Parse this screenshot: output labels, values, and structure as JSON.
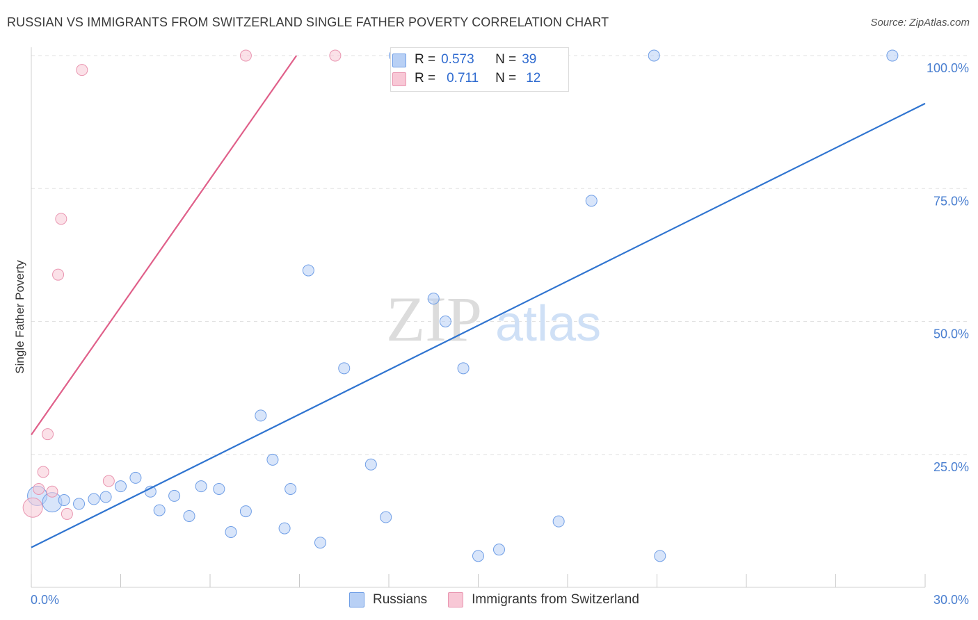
{
  "header": {
    "title": "RUSSIAN VS IMMIGRANTS FROM SWITZERLAND SINGLE FATHER POVERTY CORRELATION CHART",
    "source": "Source: ZipAtlas.com"
  },
  "watermark": {
    "zip": "ZIP",
    "atlas": "atlas"
  },
  "legend_top": {
    "rows": [
      {
        "r_label": "R =",
        "r_value": "0.573",
        "n_label": "N =",
        "n_value": "39",
        "color": "#b8d0f5",
        "border": "#6f9ee6"
      },
      {
        "r_label": "R =",
        "r_value": "0.711",
        "n_label": "N =",
        "n_value": "12",
        "color": "#f8c8d6",
        "border": "#e995b0"
      }
    ]
  },
  "legend_bottom": {
    "items": [
      {
        "label": "Russians",
        "color": "#b8d0f5",
        "border": "#6f9ee6"
      },
      {
        "label": "Immigrants from Switzerland",
        "color": "#f8c8d6",
        "border": "#e995b0"
      }
    ]
  },
  "chart_data": {
    "type": "scatter",
    "title": "RUSSIAN VS IMMIGRANTS FROM SWITZERLAND SINGLE FATHER POVERTY CORRELATION CHART",
    "xlabel": "",
    "ylabel": "Single Father Poverty",
    "xlim": [
      0,
      30
    ],
    "ylim": [
      0,
      100
    ],
    "x_tick_labels": [
      "0.0%",
      "30.0%"
    ],
    "y_tick_labels": [
      "100.0%",
      "75.0%",
      "50.0%",
      "25.0%"
    ],
    "y_tick_values": [
      100,
      75,
      50,
      25
    ],
    "grid": true,
    "legend_position": "top-center",
    "series": [
      {
        "name": "Russians",
        "color": "#6f9ee6",
        "fill": "#b8d0f5",
        "line_color": "#2f74d0",
        "trend": {
          "x": [
            0,
            30
          ],
          "y": [
            7.5,
            91
          ]
        },
        "points": [
          {
            "x": 0.2,
            "y": 17.2,
            "big": true
          },
          {
            "x": 0.7,
            "y": 16.0,
            "big": true
          },
          {
            "x": 1.1,
            "y": 16.4
          },
          {
            "x": 1.6,
            "y": 15.7
          },
          {
            "x": 2.1,
            "y": 16.6
          },
          {
            "x": 2.5,
            "y": 17.0
          },
          {
            "x": 3.0,
            "y": 19.0
          },
          {
            "x": 3.5,
            "y": 20.6
          },
          {
            "x": 4.0,
            "y": 18.0
          },
          {
            "x": 4.3,
            "y": 14.5
          },
          {
            "x": 4.8,
            "y": 17.2
          },
          {
            "x": 5.3,
            "y": 13.4
          },
          {
            "x": 5.7,
            "y": 19.0
          },
          {
            "x": 6.3,
            "y": 18.5
          },
          {
            "x": 6.7,
            "y": 10.4
          },
          {
            "x": 7.2,
            "y": 14.3
          },
          {
            "x": 7.7,
            "y": 32.3
          },
          {
            "x": 8.1,
            "y": 24.0
          },
          {
            "x": 8.5,
            "y": 11.1
          },
          {
            "x": 8.7,
            "y": 18.5
          },
          {
            "x": 9.3,
            "y": 59.6
          },
          {
            "x": 9.7,
            "y": 8.4
          },
          {
            "x": 10.5,
            "y": 41.2
          },
          {
            "x": 11.4,
            "y": 23.1
          },
          {
            "x": 11.9,
            "y": 13.2
          },
          {
            "x": 12.2,
            "y": 100
          },
          {
            "x": 12.8,
            "y": 100
          },
          {
            "x": 13.5,
            "y": 54.3
          },
          {
            "x": 13.9,
            "y": 50.0
          },
          {
            "x": 14.5,
            "y": 41.2
          },
          {
            "x": 15.0,
            "y": 5.9
          },
          {
            "x": 15.6,
            "y": 100
          },
          {
            "x": 15.7,
            "y": 7.1
          },
          {
            "x": 17.0,
            "y": 100
          },
          {
            "x": 17.7,
            "y": 12.4
          },
          {
            "x": 18.8,
            "y": 72.7
          },
          {
            "x": 20.9,
            "y": 100
          },
          {
            "x": 21.1,
            "y": 5.9
          },
          {
            "x": 28.9,
            "y": 100
          }
        ]
      },
      {
        "name": "Immigrants from Switzerland",
        "color": "#e995b0",
        "fill": "#f8c8d6",
        "line_color": "#e0608a",
        "trend": {
          "x": [
            0,
            8.9
          ],
          "y": [
            28.7,
            100
          ]
        },
        "points": [
          {
            "x": 0.05,
            "y": 15.0,
            "big": true
          },
          {
            "x": 0.25,
            "y": 18.5
          },
          {
            "x": 0.4,
            "y": 21.7
          },
          {
            "x": 0.55,
            "y": 28.8
          },
          {
            "x": 0.7,
            "y": 18.0
          },
          {
            "x": 0.9,
            "y": 58.8
          },
          {
            "x": 1.0,
            "y": 69.3
          },
          {
            "x": 1.2,
            "y": 13.8
          },
          {
            "x": 1.7,
            "y": 97.3
          },
          {
            "x": 2.6,
            "y": 20.0
          },
          {
            "x": 7.2,
            "y": 100
          },
          {
            "x": 10.2,
            "y": 100
          }
        ]
      }
    ]
  }
}
